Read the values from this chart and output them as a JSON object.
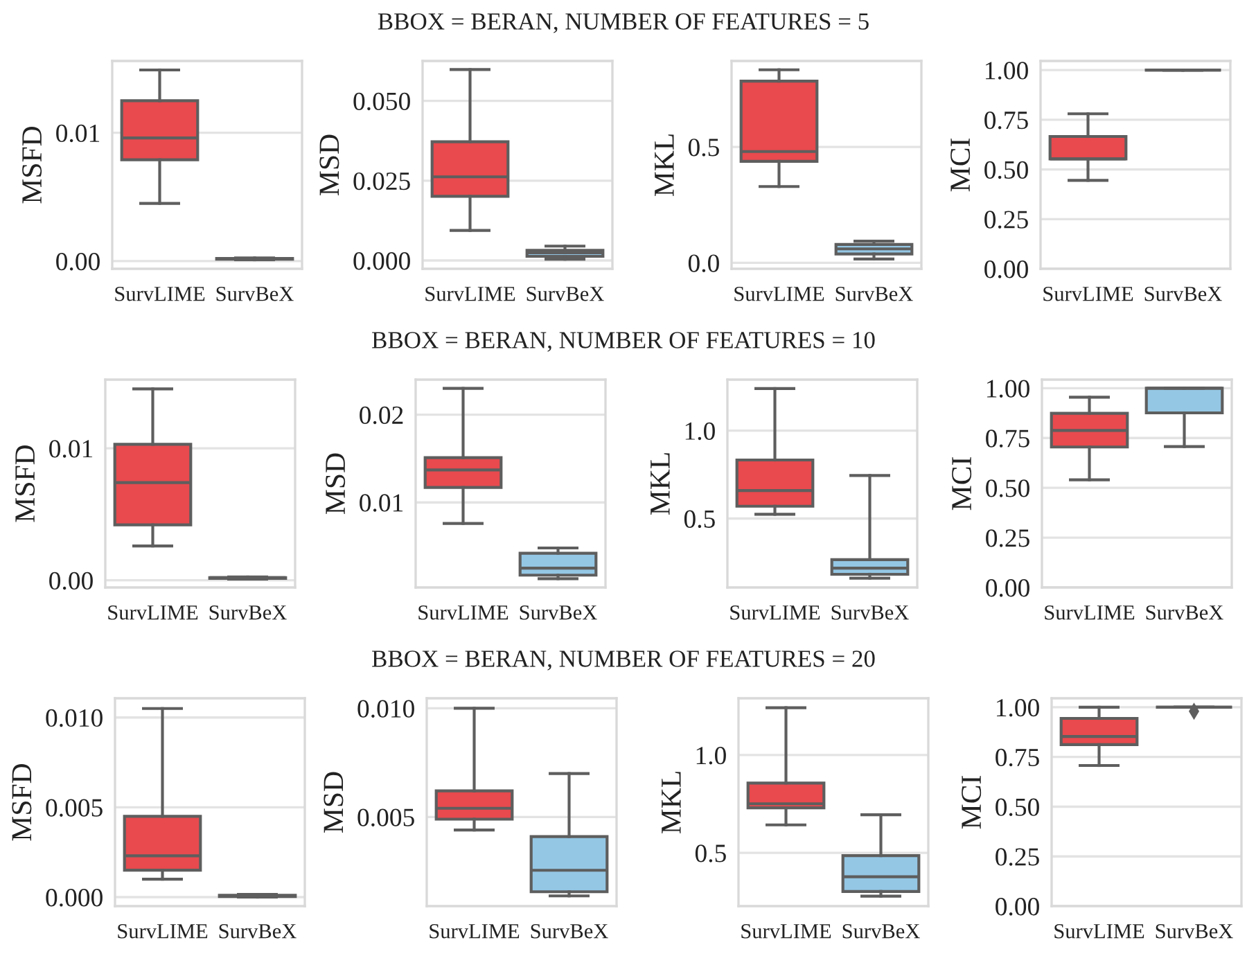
{
  "chart_data": [
    {
      "type": "other",
      "title": "BBOX = BERAN, NUMBER OF FEATURES = 5"
    },
    {
      "type": "box",
      "ylabel": "MSFD",
      "categories": [
        "SurvLIME",
        "SurvBeX"
      ],
      "colors": [
        "#e84a4e",
        "#94c7e4"
      ],
      "boxes": [
        {
          "low": 0.0045,
          "q1": 0.0079,
          "median": 0.0096,
          "q3": 0.0125,
          "high": 0.0149
        },
        {
          "low": 0.0001,
          "q1": 0.00015,
          "median": 0.0002,
          "q3": 0.0002,
          "high": 0.00025
        }
      ],
      "ylim": [
        -0.0006,
        0.0156
      ],
      "yticks": [
        {
          "value": 0,
          "label": "0.00"
        },
        0.01
      ],
      "grid": "y"
    },
    {
      "type": "box",
      "ylabel": "MSD",
      "categories": [
        "SurvLIME",
        "SurvBeX"
      ],
      "colors": [
        "#e84a4e",
        "#94c7e4"
      ],
      "boxes": [
        {
          "low": 0.0094,
          "q1": 0.0201,
          "median": 0.0262,
          "q3": 0.0372,
          "high": 0.0598
        },
        {
          "low": 0.0004,
          "q1": 0.0013,
          "median": 0.0024,
          "q3": 0.0032,
          "high": 0.0045
        }
      ],
      "ylim": [
        -0.0026,
        0.0625
      ],
      "yticks": [
        {
          "value": 0,
          "label": "0.000"
        },
        {
          "value": 0.025,
          "label": "0.025"
        },
        {
          "value": 0.05,
          "label": "0.050"
        }
      ],
      "grid": "y"
    },
    {
      "type": "box",
      "ylabel": "MKL",
      "categories": [
        "SurvLIME",
        "SurvBeX"
      ],
      "colors": [
        "#e84a4e",
        "#94c7e4"
      ],
      "boxes": [
        {
          "low": 0.329,
          "q1": 0.438,
          "median": 0.48,
          "q3": 0.784,
          "high": 0.833
        },
        {
          "low": 0.016,
          "q1": 0.038,
          "median": 0.06,
          "q3": 0.079,
          "high": 0.093
        }
      ],
      "ylim": [
        -0.026,
        0.871
      ],
      "yticks": [
        {
          "value": 0,
          "label": "0.0"
        },
        0.5
      ],
      "grid": "y"
    },
    {
      "type": "box",
      "ylabel": "MCI",
      "categories": [
        "SurvLIME",
        "SurvBeX"
      ],
      "colors": [
        "#e84a4e",
        "#5e5e5e"
      ],
      "boxes": [
        {
          "low": 0.445,
          "q1": 0.553,
          "median": 0.553,
          "q3": 0.666,
          "high": 0.78
        },
        {
          "low": 1.0,
          "q1": 1.0,
          "median": 1.0,
          "q3": 1.0,
          "high": 1.0
        }
      ],
      "ylim": [
        0,
        1.046
      ],
      "yticks": [
        {
          "value": 0,
          "label": "0.00"
        },
        0.25,
        {
          "value": 0.5,
          "label": "0.50"
        },
        0.75,
        {
          "value": 1,
          "label": "1.00"
        }
      ],
      "grid": "y"
    },
    {
      "type": "other",
      "title": "BBOX = BERAN, NUMBER OF FEATURES = 10"
    },
    {
      "type": "box",
      "ylabel": "MSFD",
      "categories": [
        "SurvLIME",
        "SurvBeX"
      ],
      "colors": [
        "#e84a4e",
        "#94c7e4"
      ],
      "boxes": [
        {
          "low": 0.0026,
          "q1": 0.0042,
          "median": 0.0074,
          "q3": 0.0103,
          "high": 0.0145
        },
        {
          "low": 0.0001,
          "q1": 0.00015,
          "median": 0.0002,
          "q3": 0.0002,
          "high": 0.00025
        }
      ],
      "ylim": [
        -0.00054,
        0.0152
      ],
      "yticks": [
        {
          "value": 0,
          "label": "0.00"
        },
        0.01
      ],
      "grid": "y"
    },
    {
      "type": "box",
      "ylabel": "MSD",
      "categories": [
        "SurvLIME",
        "SurvBeX"
      ],
      "colors": [
        "#e84a4e",
        "#94c7e4"
      ],
      "boxes": [
        {
          "low": 0.0076,
          "q1": 0.0117,
          "median": 0.0137,
          "q3": 0.0151,
          "high": 0.023
        },
        {
          "low": 0.0013,
          "q1": 0.0017,
          "median": 0.0025,
          "q3": 0.0042,
          "high": 0.0048
        }
      ],
      "ylim": [
        0.0003,
        0.024
      ],
      "yticks": [
        0.01,
        0.02
      ],
      "grid": "y"
    },
    {
      "type": "box",
      "ylabel": "MKL",
      "categories": [
        "SurvLIME",
        "SurvBeX"
      ],
      "colors": [
        "#e84a4e",
        "#94c7e4"
      ],
      "boxes": [
        {
          "low": 0.524,
          "q1": 0.57,
          "median": 0.659,
          "q3": 0.833,
          "high": 1.239
        },
        {
          "low": 0.161,
          "q1": 0.183,
          "median": 0.218,
          "q3": 0.266,
          "high": 0.745
        }
      ],
      "ylim": [
        0.108,
        1.29
      ],
      "yticks": [
        0.5,
        {
          "value": 1,
          "label": "1.0"
        }
      ],
      "grid": "y"
    },
    {
      "type": "box",
      "ylabel": "MCI",
      "categories": [
        "SurvLIME",
        "SurvBeX"
      ],
      "colors": [
        "#e84a4e",
        "#94c7e4"
      ],
      "boxes": [
        {
          "low": 0.54,
          "q1": 0.705,
          "median": 0.788,
          "q3": 0.874,
          "high": 0.955
        },
        {
          "low": 0.707,
          "q1": 0.876,
          "median": 1.0,
          "q3": 1.0,
          "high": 1.0
        }
      ],
      "ylim": [
        0,
        1.043
      ],
      "yticks": [
        {
          "value": 0,
          "label": "0.00"
        },
        0.25,
        {
          "value": 0.5,
          "label": "0.50"
        },
        0.75,
        {
          "value": 1,
          "label": "1.00"
        }
      ],
      "grid": "y"
    },
    {
      "type": "other",
      "title": "BBOX = BERAN, NUMBER OF FEATURES = 20"
    },
    {
      "type": "box",
      "ylabel": "MSFD",
      "categories": [
        "SurvLIME",
        "SurvBeX"
      ],
      "colors": [
        "#e84a4e",
        "#94c7e4"
      ],
      "boxes": [
        {
          "low": 0.001,
          "q1": 0.0015,
          "median": 0.0023,
          "q3": 0.0045,
          "high": 0.0105
        },
        {
          "low": 0.0,
          "q1": 3e-05,
          "median": 5e-05,
          "q3": 0.0001,
          "high": 0.00015
        }
      ],
      "ylim": [
        -0.0005,
        0.01107
      ],
      "yticks": [
        {
          "value": 0,
          "label": "0.000"
        },
        {
          "value": 0.005,
          "label": "0.005"
        },
        {
          "value": 0.01,
          "label": "0.010"
        }
      ],
      "grid": "y"
    },
    {
      "type": "box",
      "ylabel": "MSD",
      "categories": [
        "SurvLIME",
        "SurvBeX"
      ],
      "colors": [
        "#e84a4e",
        "#94c7e4"
      ],
      "boxes": [
        {
          "low": 0.0044,
          "q1": 0.0049,
          "median": 0.0054,
          "q3": 0.0062,
          "high": 0.01
        },
        {
          "low": 0.00137,
          "q1": 0.00156,
          "median": 0.00255,
          "q3": 0.0041,
          "high": 0.007
        }
      ],
      "ylim": [
        0.0009,
        0.01046
      ],
      "yticks": [
        {
          "value": 0.005,
          "label": "0.005"
        },
        {
          "value": 0.01,
          "label": "0.010"
        }
      ],
      "grid": "y"
    },
    {
      "type": "box",
      "ylabel": "MKL",
      "categories": [
        "SurvLIME",
        "SurvBeX"
      ],
      "colors": [
        "#e84a4e",
        "#94c7e4"
      ],
      "boxes": [
        {
          "low": 0.643,
          "q1": 0.73,
          "median": 0.751,
          "q3": 0.857,
          "high": 1.242
        },
        {
          "low": 0.279,
          "q1": 0.303,
          "median": 0.378,
          "q3": 0.486,
          "high": 0.695
        }
      ],
      "ylim": [
        0.228,
        1.29
      ],
      "yticks": [
        0.5,
        {
          "value": 1,
          "label": "1.0"
        }
      ],
      "grid": "y"
    },
    {
      "type": "box",
      "ylabel": "MCI",
      "categories": [
        "SurvLIME",
        "SurvBeX"
      ],
      "colors": [
        "#e84a4e",
        "#5e5e5e"
      ],
      "boxes": [
        {
          "low": 0.707,
          "q1": 0.812,
          "median": 0.853,
          "q3": 0.944,
          "high": 1.0
        },
        {
          "low": 1.0,
          "q1": 1.0,
          "median": 1.0,
          "q3": 1.0,
          "high": 1.0,
          "outliers": [
            0.98
          ]
        }
      ],
      "ylim": [
        0,
        1.045
      ],
      "yticks": [
        {
          "value": 0,
          "label": "0.00"
        },
        0.25,
        {
          "value": 0.5,
          "label": "0.50"
        },
        0.75,
        {
          "value": 1,
          "label": "1.00"
        }
      ],
      "grid": "y"
    }
  ]
}
